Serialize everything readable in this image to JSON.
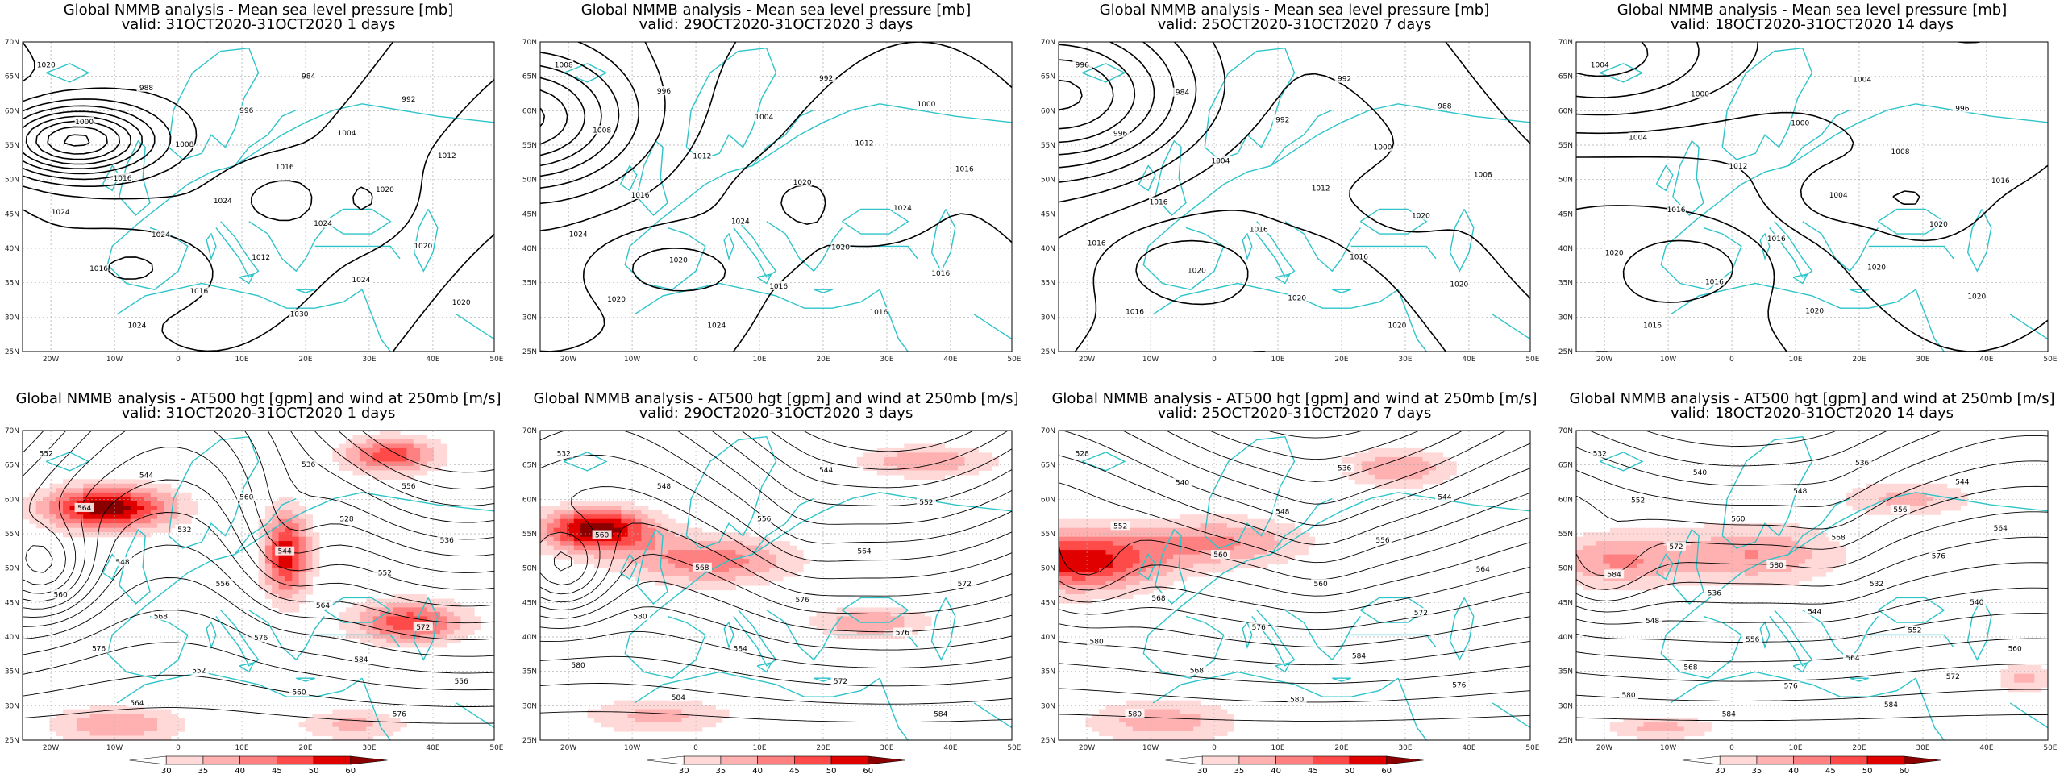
{
  "panels": [
    {
      "title": "Global NMMB analysis - Mean sea level pressure [mb]",
      "subtitle": "valid: 31OCT2020-31OCT2020   1 days",
      "type": "mslp",
      "labels": [
        "1020",
        "984",
        "988",
        "992",
        "996",
        "1000",
        "1004",
        "1008",
        "1012",
        "1016",
        "1016",
        "1020",
        "1024",
        "1024",
        "1024",
        "1024",
        "1020",
        "1012",
        "1016",
        "1024",
        "1016",
        "1020",
        "1030",
        "1024"
      ]
    },
    {
      "title": "Global NMMB analysis - Mean sea level pressure [mb]",
      "subtitle": "valid: 29OCT2020-31OCT2020   3 days",
      "type": "mslp",
      "labels": [
        "1008",
        "992",
        "996",
        "1000",
        "1004",
        "1008",
        "1012",
        "1012",
        "1016",
        "1020",
        "1016",
        "1024",
        "1024",
        "1024",
        "1020",
        "1020",
        "1016",
        "1016",
        "1020",
        "1016",
        "1024"
      ]
    },
    {
      "title": "Global NMMB analysis - Mean sea level pressure [mb]",
      "subtitle": "valid: 25OCT2020-31OCT2020   7 days",
      "type": "mslp",
      "labels": [
        "996",
        "992",
        "984",
        "988",
        "992",
        "996",
        "1000",
        "1004",
        "1008",
        "1012",
        "1016",
        "1020",
        "1016",
        "1016",
        "1016",
        "1020",
        "1020",
        "1020",
        "1016",
        "1020"
      ]
    },
    {
      "title": "Global NMMB analysis - Mean sea level pressure [mb]",
      "subtitle": "valid: 18OCT2020-31OCT2020   14 days",
      "type": "mslp",
      "labels": [
        "1004",
        "1004",
        "1000",
        "996",
        "1000",
        "1004",
        "1008",
        "1012",
        "1016",
        "1004",
        "1016",
        "1020",
        "1016",
        "1020",
        "1020",
        "1016",
        "1020",
        "1020",
        "1016"
      ]
    },
    {
      "title": "Global NMMB analysis - AT500 hgt [gpm] and wind at 250mb [m/s]",
      "subtitle": "valid: 31OCT2020-31OCT2020   1 days",
      "type": "z500",
      "labels": [
        "552",
        "536",
        "544",
        "556",
        "560",
        "564",
        "528",
        "532",
        "536",
        "544",
        "548",
        "552",
        "556",
        "560",
        "564",
        "568",
        "572",
        "576",
        "576",
        "584",
        "552",
        "556",
        "560",
        "564",
        "576"
      ]
    },
    {
      "title": "Global NMMB analysis - AT500 hgt [gpm] and wind at 250mb [m/s]",
      "subtitle": "valid: 29OCT2020-31OCT2020   3 days",
      "type": "z500",
      "labels": [
        "532",
        "544",
        "548",
        "552",
        "556",
        "560",
        "564",
        "568",
        "572",
        "576",
        "580",
        "576",
        "584",
        "580",
        "572",
        "584",
        "584"
      ]
    },
    {
      "title": "Global NMMB analysis - AT500 hgt [gpm] and wind at 250mb [m/s]",
      "subtitle": "valid: 25OCT2020-31OCT2020   7 days",
      "type": "z500",
      "labels": [
        "528",
        "536",
        "540",
        "544",
        "548",
        "552",
        "556",
        "560",
        "564",
        "560",
        "568",
        "572",
        "576",
        "580",
        "584",
        "568",
        "576",
        "580",
        "580"
      ]
    },
    {
      "title": "Global NMMB analysis - AT500 hgt [gpm] and wind at 250mb [m/s]",
      "subtitle": "valid: 18OCT2020-31OCT2020   14 days",
      "type": "z500",
      "labels": [
        "532",
        "536",
        "540",
        "544",
        "548",
        "552",
        "556",
        "560",
        "564",
        "568",
        "572",
        "576",
        "580",
        "584",
        "532",
        "536",
        "540",
        "544",
        "548",
        "552",
        "556",
        "560",
        "564",
        "568",
        "572",
        "576",
        "580",
        "584",
        "584"
      ]
    }
  ],
  "lat_ticks": [
    "70N",
    "65N",
    "60N",
    "55N",
    "50N",
    "45N",
    "40N",
    "35N",
    "30N",
    "25N"
  ],
  "lon_ticks": [
    "20W",
    "10W",
    "0",
    "10E",
    "20E",
    "30E",
    "40E",
    "50E"
  ],
  "colorbar": {
    "ticks": [
      "30",
      "35",
      "40",
      "45",
      "50",
      "60"
    ],
    "colors": [
      "#ffffff",
      "#ffd8d8",
      "#ffb0b0",
      "#ff8080",
      "#ff4a4a",
      "#e00000",
      "#8a0000"
    ]
  },
  "colors": {
    "coast": "#2ec4c9",
    "contour": "#000000",
    "grid": "#aaaaaa"
  }
}
